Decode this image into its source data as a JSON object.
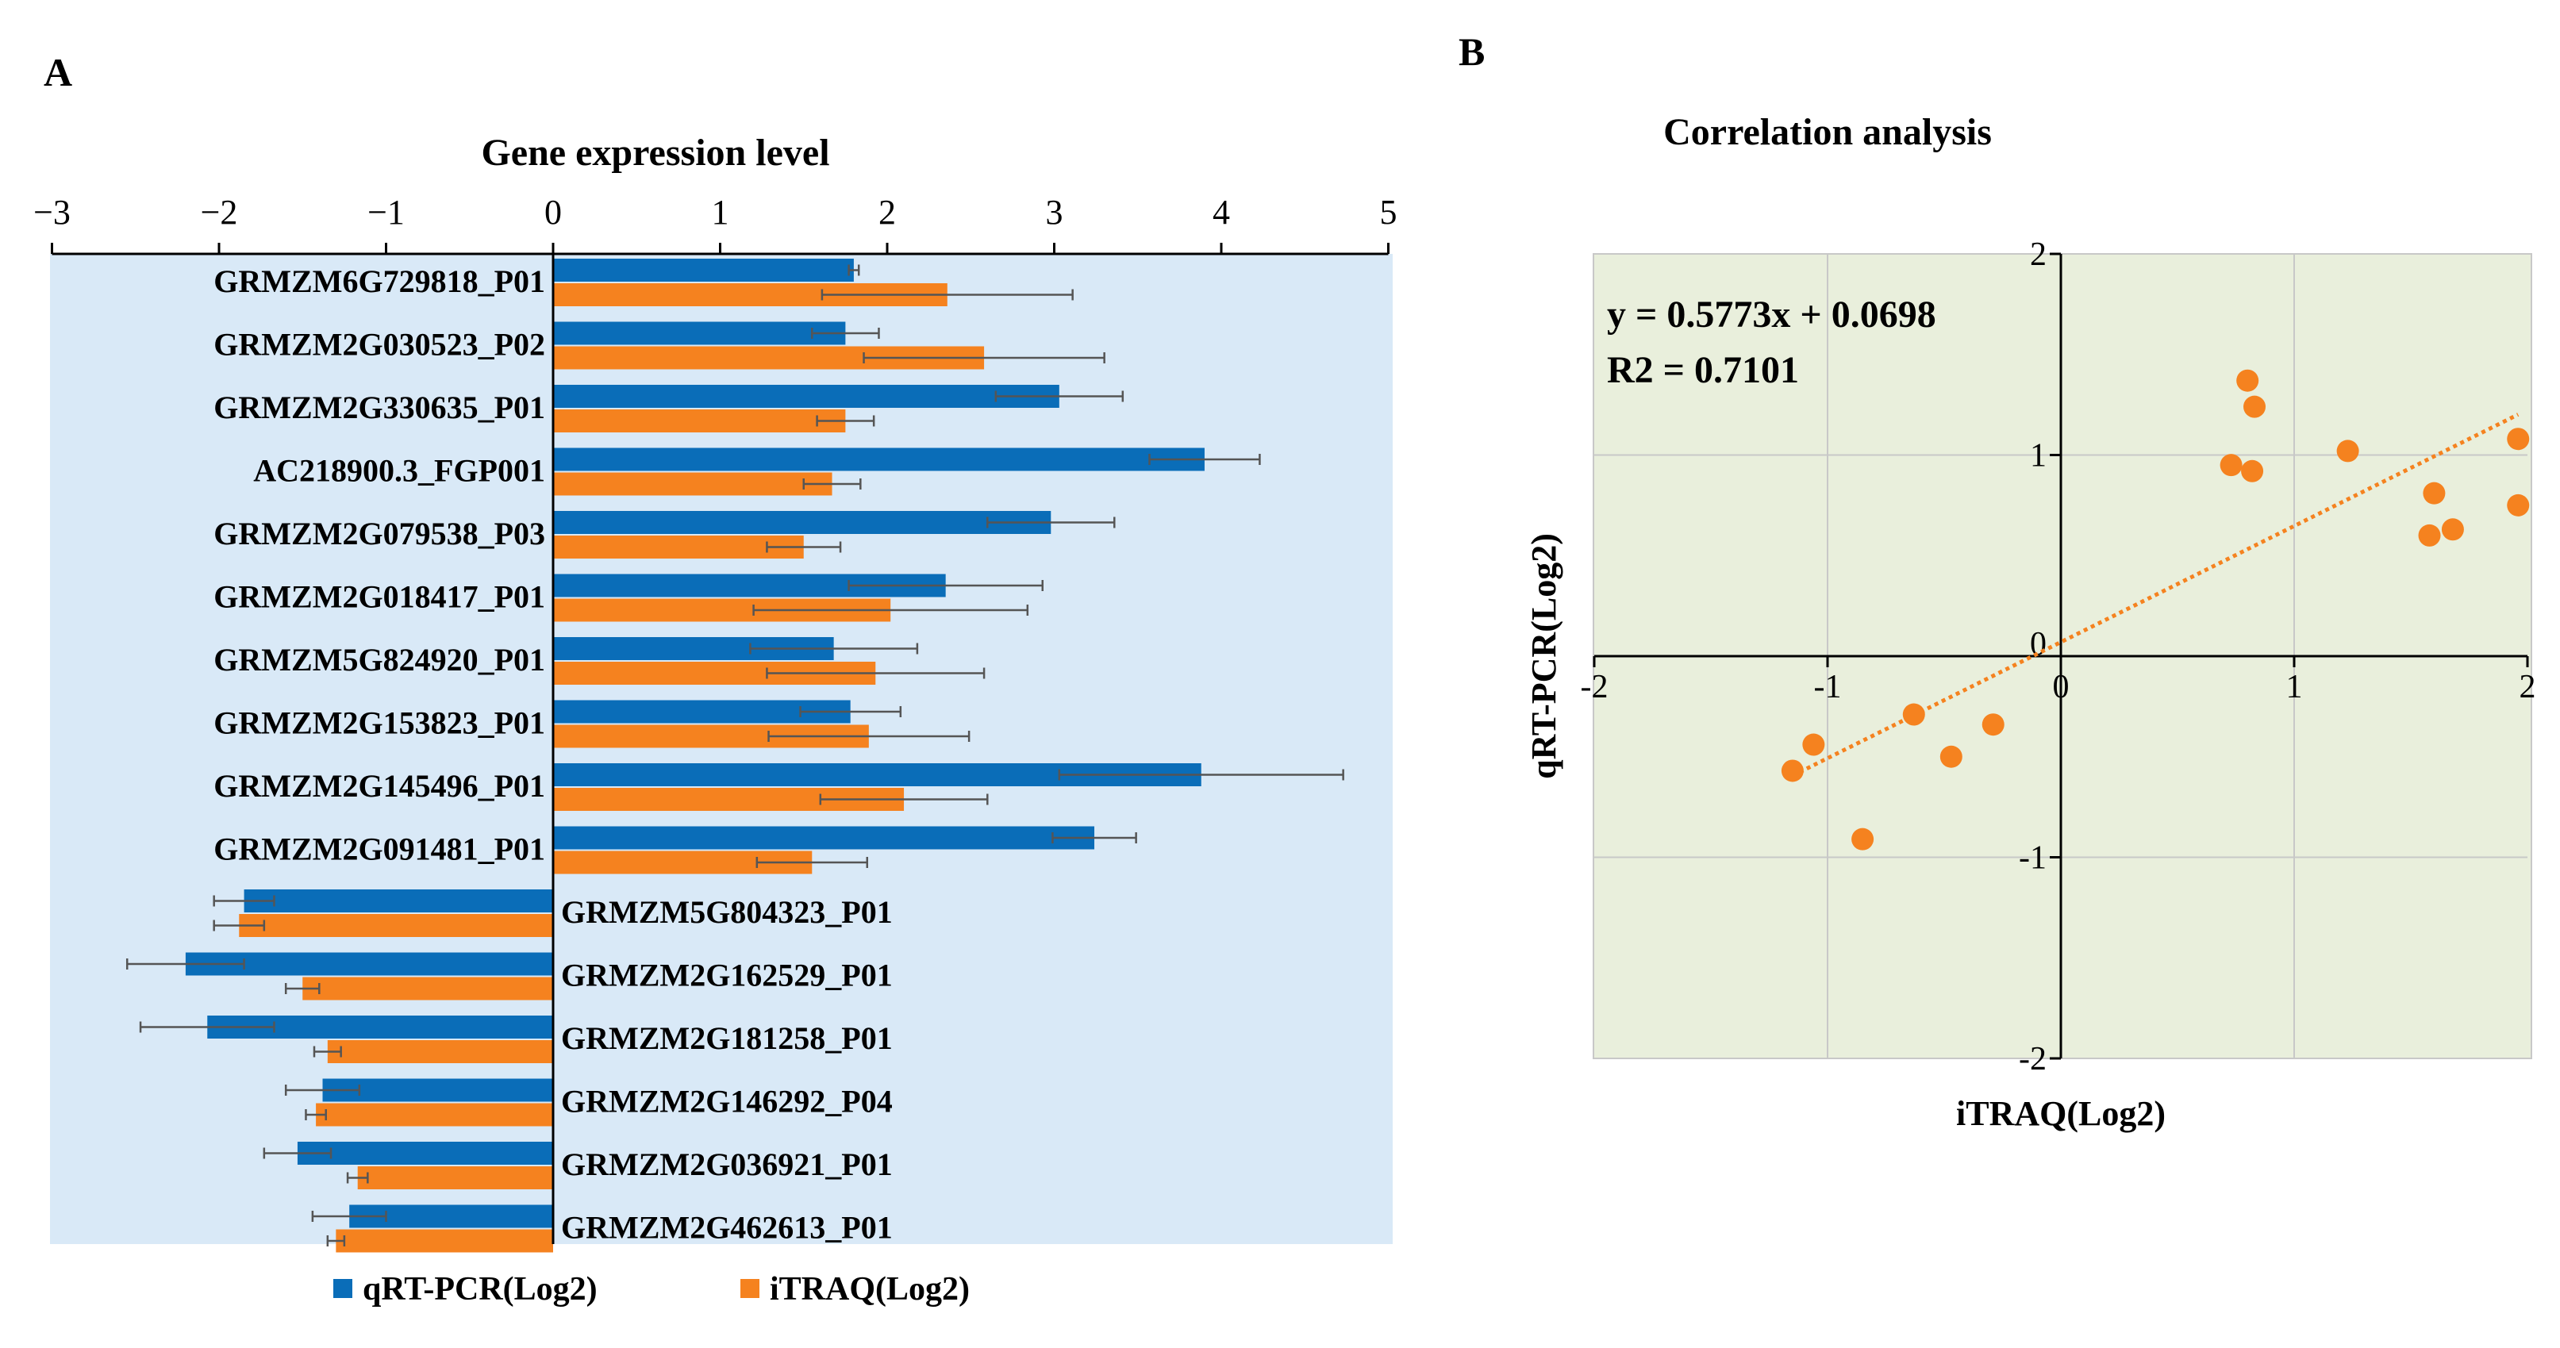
{
  "panel_a": {
    "label": "A",
    "legend_qrt": "qRT-PCR(Log2)",
    "legend_itraq": "iTRAQ(Log2)"
  },
  "panel_b": {
    "label": "B",
    "equation": "y = 0.5773x + 0.0698",
    "r2": "R2 = 0.7101"
  },
  "colors": {
    "qrt": "#0a6db8",
    "itraq": "#f5821f",
    "bg_a": "#d9e9f7",
    "bg_b": "#e9efdc",
    "err": "#555555"
  },
  "chart_data": [
    {
      "type": "bar",
      "orientation": "horizontal",
      "title": "Gene expression level",
      "xlim": [
        -3,
        5
      ],
      "xticks": [
        "−3",
        "−2",
        "−1",
        "0",
        "1",
        "2",
        "3",
        "4",
        "5"
      ],
      "tick_values": [
        -3,
        -2,
        -1,
        0,
        1,
        2,
        3,
        4,
        5
      ],
      "axis_position": "top",
      "categories": [
        "GRMZM6G729818_P01",
        "GRMZM2G030523_P02",
        "GRMZM2G330635_P01",
        "AC218900.3_FGP001",
        "GRMZM2G079538_P03",
        "GRMZM2G018417_P01",
        "GRMZM5G824920_P01",
        "GRMZM2G153823_P01",
        "GRMZM2G145496_P01",
        "GRMZM2G091481_P01",
        "GRMZM5G804323_P01",
        "GRMZM2G162529_P01",
        "GRMZM2G181258_P01",
        "GRMZM2G146292_P04",
        "GRMZM2G036921_P01",
        "GRMZM2G462613_P01"
      ],
      "series": [
        {
          "name": "qRT-PCR(Log2)",
          "values": [
            1.8,
            1.75,
            3.03,
            3.9,
            2.98,
            2.35,
            1.68,
            1.78,
            3.88,
            3.24,
            -1.85,
            -2.2,
            -2.07,
            -1.38,
            -1.53,
            -1.22
          ],
          "errors": [
            0.03,
            0.2,
            0.38,
            0.33,
            0.38,
            0.58,
            0.5,
            0.3,
            0.85,
            0.25,
            0.18,
            0.35,
            0.4,
            0.22,
            0.2,
            0.22
          ]
        },
        {
          "name": "iTRAQ(Log2)",
          "values": [
            2.36,
            2.58,
            1.75,
            1.67,
            1.5,
            2.02,
            1.93,
            1.89,
            2.1,
            1.55,
            -1.88,
            -1.5,
            -1.35,
            -1.42,
            -1.17,
            -1.3
          ],
          "errors": [
            0.75,
            0.72,
            0.17,
            0.17,
            0.22,
            0.82,
            0.65,
            0.6,
            0.5,
            0.33,
            0.15,
            0.1,
            0.08,
            0.06,
            0.06,
            0.05
          ]
        }
      ]
    },
    {
      "type": "scatter",
      "title": "Correlation analysis",
      "xlabel": "iTRAQ(Log2)",
      "ylabel": "qRT-PCR(Log2)",
      "xlim": [
        -2,
        2
      ],
      "ylim": [
        -2,
        2
      ],
      "xticks": [
        "-2",
        "-1",
        "0",
        "1",
        "2"
      ],
      "yticks": [
        "2",
        "1",
        "0",
        "-1",
        "-2"
      ],
      "tick_values": [
        -2,
        -1,
        0,
        1,
        2
      ],
      "grid": true,
      "points": [
        {
          "x": -1.15,
          "y": -0.57
        },
        {
          "x": -1.06,
          "y": -0.44
        },
        {
          "x": -0.85,
          "y": -0.91
        },
        {
          "x": -0.63,
          "y": -0.29
        },
        {
          "x": -0.47,
          "y": -0.5
        },
        {
          "x": -0.29,
          "y": -0.34
        },
        {
          "x": 0.73,
          "y": 0.95
        },
        {
          "x": 0.8,
          "y": 1.37
        },
        {
          "x": 0.83,
          "y": 1.24
        },
        {
          "x": 0.82,
          "y": 0.92
        },
        {
          "x": 1.23,
          "y": 1.02
        },
        {
          "x": 1.6,
          "y": 0.81
        },
        {
          "x": 1.58,
          "y": 0.6
        },
        {
          "x": 1.68,
          "y": 0.63
        },
        {
          "x": 1.96,
          "y": 1.08
        },
        {
          "x": 1.96,
          "y": 0.75
        }
      ],
      "trendline": {
        "slope": 0.5773,
        "intercept": 0.0698,
        "x_range": [
          -1.15,
          1.96
        ],
        "style": "dotted"
      }
    }
  ]
}
